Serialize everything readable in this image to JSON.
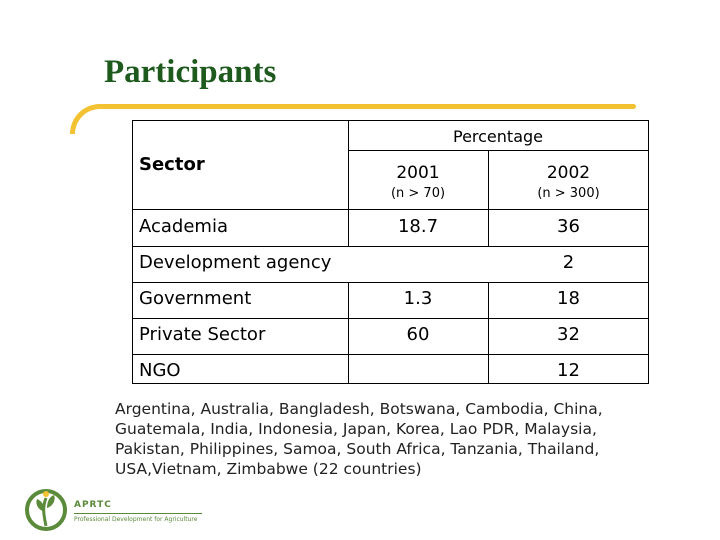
{
  "slide": {
    "title": "Participants"
  },
  "table": {
    "header_percentage": "Percentage",
    "header_sector": "Sector",
    "years": [
      {
        "year": "2001",
        "n": "(n > 70)"
      },
      {
        "year": "2002",
        "n": "(n > 300)"
      }
    ],
    "rows": [
      {
        "sector": "Academia",
        "v2001": "18.7",
        "v2002": "36"
      },
      {
        "sector": "Development agency",
        "v2001": "",
        "v2002": "2"
      },
      {
        "sector": "Government",
        "v2001": "1.3",
        "v2002": "18"
      },
      {
        "sector": "Private Sector",
        "v2001": "60",
        "v2002": "32"
      },
      {
        "sector": "NGO",
        "v2001": "",
        "v2002": "12"
      }
    ]
  },
  "countries_text": "Argentina, Australia, Bangladesh, Botswana, Cambodia, China, Guatemala, India, Indonesia, Japan, Korea, Lao PDR, Malaysia, Pakistan, Philippines, Samoa, South Africa, Tanzania, Thailand, USA,Vietnam, Zimbabwe (22 countries)",
  "logo": {
    "acronym": "APRTC",
    "tagline": "Professional Development for Agriculture"
  },
  "colors": {
    "title": "#1e5a1e",
    "accent_rule": "#f2c232",
    "logo_green": "#5a8a3a"
  }
}
